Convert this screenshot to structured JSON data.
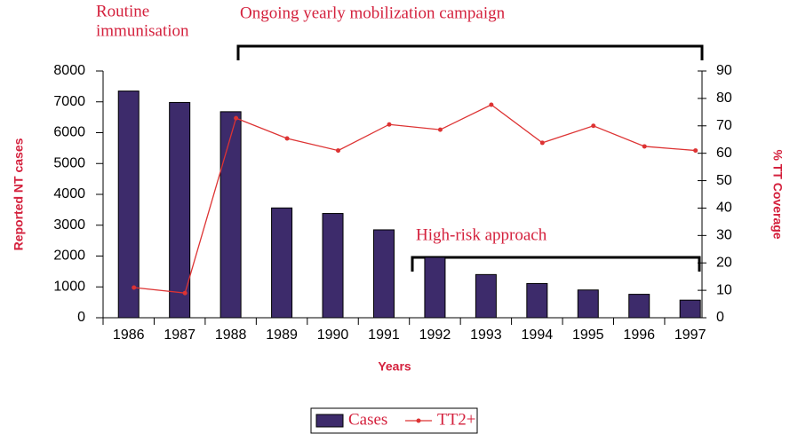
{
  "chart_data": {
    "type": "bar",
    "categories": [
      "1986",
      "1987",
      "1988",
      "1989",
      "1990",
      "1991",
      "1992",
      "1993",
      "1994",
      "1995",
      "1996",
      "1997"
    ],
    "series": [
      {
        "name": "Cases",
        "color": "#3d2b6b",
        "values": [
          7350,
          6980,
          6680,
          3560,
          3380,
          2850,
          1960,
          1400,
          1110,
          900,
          760,
          570
        ]
      },
      {
        "name": "TT2+",
        "color": "#dd3333",
        "type": "line",
        "axis": "y2",
        "values": [
          11,
          9,
          72.8,
          65.4,
          61,
          70.5,
          68.6,
          77.7,
          63.8,
          70,
          62.5,
          61
        ]
      }
    ],
    "ylim": [
      0,
      8000
    ],
    "yticks": [
      0,
      1000,
      2000,
      3000,
      4000,
      5000,
      6000,
      7000,
      8000
    ],
    "y2lim": [
      0,
      90
    ],
    "y2ticks": [
      0,
      10,
      20,
      30,
      40,
      50,
      60,
      70,
      80,
      90
    ],
    "y_label": "Reported NT cases",
    "y2_label": "% TT Coverage",
    "x_label": "Years",
    "annotations": [
      "Routine",
      "immunisation",
      "Ongoing yearly mobilization campaign",
      "High-risk approach"
    ],
    "legend": "bottom"
  }
}
